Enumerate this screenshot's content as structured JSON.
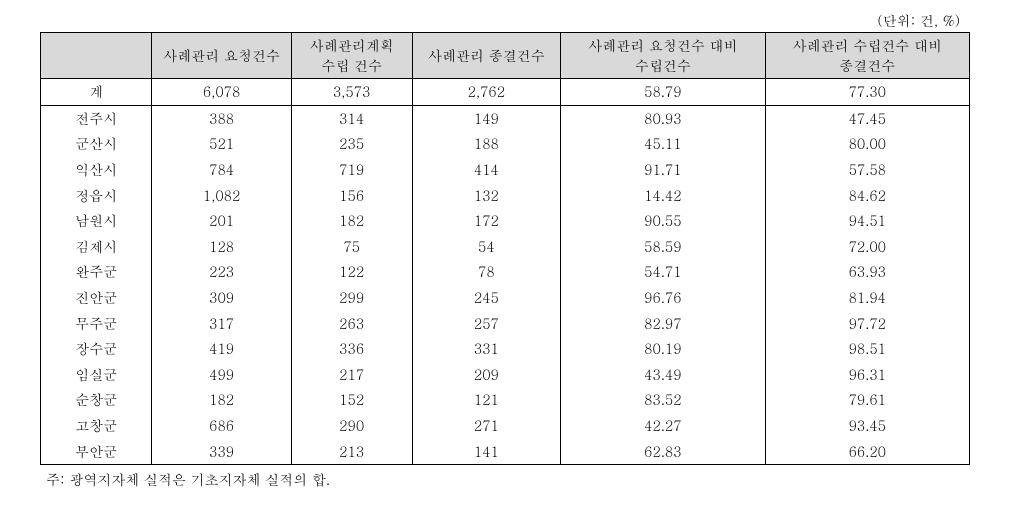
{
  "unit_label": "(단위: 건, %)",
  "headers": {
    "col0": "",
    "col1": "사례관리 요청건수",
    "col2_line1": "사례관리계획",
    "col2_line2": "수립 건수",
    "col3": "사례관리 종결건수",
    "col4_line1": "사례관리 요청건수 대비",
    "col4_line2": "수립건수",
    "col5_line1": "사례관리 수립건수 대비",
    "col5_line2": "종결건수"
  },
  "total_row": {
    "label": "계",
    "c1": "6,078",
    "c2": "3,573",
    "c3": "2,762",
    "c4": "58.79",
    "c5": "77.30"
  },
  "rows": [
    {
      "label": "전주시",
      "c1": "388",
      "c2": "314",
      "c3": "149",
      "c4": "80.93",
      "c5": "47.45"
    },
    {
      "label": "군산시",
      "c1": "521",
      "c2": "235",
      "c3": "188",
      "c4": "45.11",
      "c5": "80.00"
    },
    {
      "label": "익산시",
      "c1": "784",
      "c2": "719",
      "c3": "414",
      "c4": "91.71",
      "c5": "57.58"
    },
    {
      "label": "정읍시",
      "c1": "1,082",
      "c2": "156",
      "c3": "132",
      "c4": "14.42",
      "c5": "84.62"
    },
    {
      "label": "남원시",
      "c1": "201",
      "c2": "182",
      "c3": "172",
      "c4": "90.55",
      "c5": "94.51"
    },
    {
      "label": "김제시",
      "c1": "128",
      "c2": "75",
      "c3": "54",
      "c4": "58.59",
      "c5": "72.00"
    },
    {
      "label": "완주군",
      "c1": "223",
      "c2": "122",
      "c3": "78",
      "c4": "54.71",
      "c5": "63.93"
    },
    {
      "label": "진안군",
      "c1": "309",
      "c2": "299",
      "c3": "245",
      "c4": "96.76",
      "c5": "81.94"
    },
    {
      "label": "무주군",
      "c1": "317",
      "c2": "263",
      "c3": "257",
      "c4": "82.97",
      "c5": "97.72"
    },
    {
      "label": "장수군",
      "c1": "419",
      "c2": "336",
      "c3": "331",
      "c4": "80.19",
      "c5": "98.51"
    },
    {
      "label": "임실군",
      "c1": "499",
      "c2": "217",
      "c3": "209",
      "c4": "43.49",
      "c5": "96.31"
    },
    {
      "label": "순창군",
      "c1": "182",
      "c2": "152",
      "c3": "121",
      "c4": "83.52",
      "c5": "79.61"
    },
    {
      "label": "고창군",
      "c1": "686",
      "c2": "290",
      "c3": "271",
      "c4": "42.27",
      "c5": "93.45"
    },
    {
      "label": "부안군",
      "c1": "339",
      "c2": "213",
      "c3": "141",
      "c4": "62.83",
      "c5": "66.20"
    }
  ],
  "footnote": "주: 광역지자체 실적은 기초지자체 실적의 합."
}
